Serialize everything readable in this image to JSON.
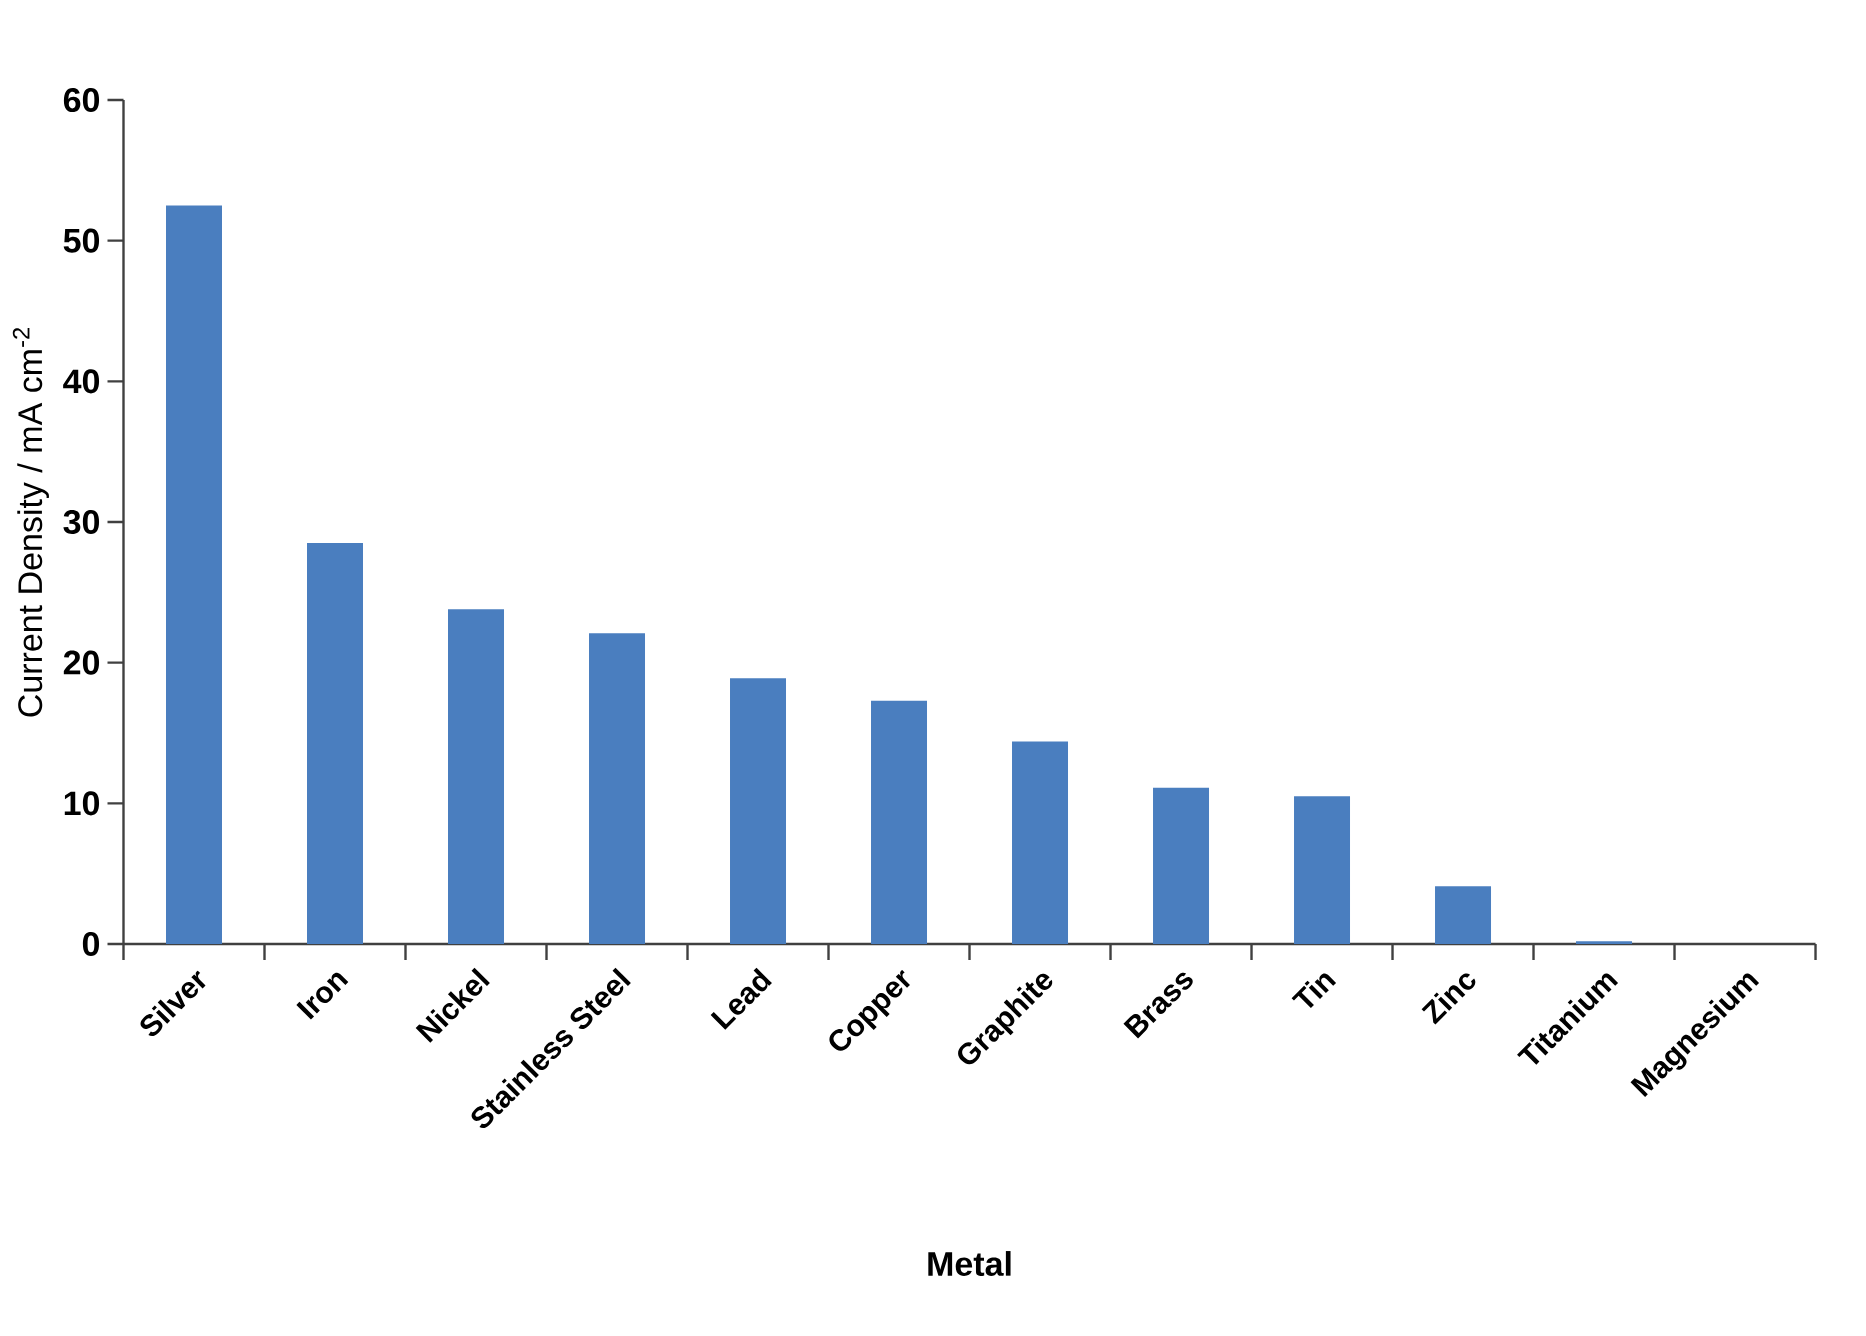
{
  "chart_data": {
    "type": "bar",
    "xlabel": "Metal",
    "ylabel": "Current Density / mA cm$^{-2}$",
    "categories": [
      "Silver",
      "Iron",
      "Nickel",
      "Stainless Steel",
      "Lead",
      "Copper",
      "Graphite",
      "Brass",
      "Tin",
      "Zinc",
      "Titanium",
      "Magnesium"
    ],
    "values": [
      52.5,
      28.5,
      23.8,
      22.1,
      18.9,
      17.3,
      14.4,
      11.1,
      10.5,
      4.1,
      0.2,
      0
    ],
    "color": "#4a7ebf",
    "ylim": [
      0,
      60
    ],
    "yticks": [
      0,
      10,
      20,
      30,
      40,
      50,
      60
    ],
    "grid": false
  }
}
